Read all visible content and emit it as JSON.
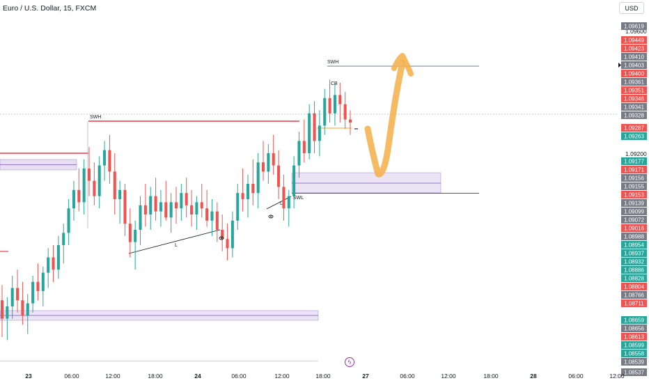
{
  "header": {
    "symbol": "Euro / U.S. Dollar, 15, FXCM",
    "currency": "USD"
  },
  "toolbar": {
    "lightning_icon": "lightning-icon"
  },
  "colors": {
    "up": "#26a69a",
    "down": "#ef5350",
    "grey_label": "#787b86",
    "drawing_red": "#f23645",
    "zone_fill": "#d1c4e9",
    "zone_line": "#7e57c2",
    "orange": "#f5b14c"
  },
  "chart_data": {
    "type": "candlestick",
    "title": "Euro / U.S. Dollar, 15, FXCM",
    "x_ticks": [
      "23",
      "06:00",
      "12:00",
      "18:00",
      "24",
      "06:00",
      "12:00",
      "18:00",
      "27",
      "06:00",
      "12:00",
      "18:00",
      "28",
      "06:00",
      "12:00"
    ],
    "y_ticks": [
      "1.09600",
      "1.09200"
    ],
    "y_axis_labels": [
      {
        "value": "1.09619",
        "kind": "grey"
      },
      {
        "value": "1.09449",
        "kind": "down"
      },
      {
        "value": "1.09423",
        "kind": "down"
      },
      {
        "value": "1.09410",
        "kind": "grey"
      },
      {
        "value": "1.09403",
        "kind": "grey"
      },
      {
        "value": "1.09400",
        "kind": "down"
      },
      {
        "value": "1.09361",
        "kind": "grey"
      },
      {
        "value": "1.09351",
        "kind": "down"
      },
      {
        "value": "1.09346",
        "kind": "down"
      },
      {
        "value": "1.09341",
        "kind": "grey"
      },
      {
        "value": "1.09328",
        "kind": "grey"
      },
      {
        "value": "1.09287",
        "kind": "down"
      },
      {
        "value": "1.09263",
        "kind": "up"
      },
      {
        "value": "1.09177",
        "kind": "up"
      },
      {
        "value": "1.09171",
        "kind": "down"
      },
      {
        "value": "1.09156",
        "kind": "grey"
      },
      {
        "value": "1.09155",
        "kind": "grey"
      },
      {
        "value": "1.09153",
        "kind": "down"
      },
      {
        "value": "1.09139",
        "kind": "grey"
      },
      {
        "value": "1.09099",
        "kind": "grey"
      },
      {
        "value": "1.09072",
        "kind": "grey"
      },
      {
        "value": "1.09016",
        "kind": "down"
      },
      {
        "value": "1.08988",
        "kind": "grey"
      },
      {
        "value": "1.08954",
        "kind": "up"
      },
      {
        "value": "1.08937",
        "kind": "up"
      },
      {
        "value": "1.08932",
        "kind": "up"
      },
      {
        "value": "1.08886",
        "kind": "up"
      },
      {
        "value": "1.08828",
        "kind": "up"
      },
      {
        "value": "1.08804",
        "kind": "down"
      },
      {
        "value": "1.08766",
        "kind": "grey"
      },
      {
        "value": "1.08711",
        "kind": "down"
      },
      {
        "value": "1.08659",
        "kind": "up"
      },
      {
        "value": "1.08656",
        "kind": "grey"
      },
      {
        "value": "1.08613",
        "kind": "down"
      },
      {
        "value": "1.08599",
        "kind": "up"
      },
      {
        "value": "1.08558",
        "kind": "up"
      },
      {
        "value": "1.08539",
        "kind": "grey"
      },
      {
        "value": "1.08537",
        "kind": "grey"
      }
    ],
    "annotations": [
      "SWH",
      "SWH",
      "SWL",
      "L",
      "L",
      "CB"
    ],
    "last_price": "1.09328",
    "series": [
      {
        "o": 1.0872,
        "h": 1.0877,
        "l": 1.086,
        "c": 1.0866
      },
      {
        "o": 1.0866,
        "h": 1.0873,
        "l": 1.0859,
        "c": 1.087
      },
      {
        "o": 1.087,
        "h": 1.088,
        "l": 1.0866,
        "c": 1.0876
      },
      {
        "o": 1.0876,
        "h": 1.0882,
        "l": 1.0868,
        "c": 1.0872
      },
      {
        "o": 1.0872,
        "h": 1.0878,
        "l": 1.0864,
        "c": 1.0867
      },
      {
        "o": 1.0867,
        "h": 1.0874,
        "l": 1.0861,
        "c": 1.0871
      },
      {
        "o": 1.0871,
        "h": 1.088,
        "l": 1.0868,
        "c": 1.0878
      },
      {
        "o": 1.0878,
        "h": 1.0884,
        "l": 1.0872,
        "c": 1.0875
      },
      {
        "o": 1.0875,
        "h": 1.0883,
        "l": 1.087,
        "c": 1.0881
      },
      {
        "o": 1.0881,
        "h": 1.0889,
        "l": 1.0876,
        "c": 1.0886
      },
      {
        "o": 1.0886,
        "h": 1.089,
        "l": 1.0878,
        "c": 1.0882
      },
      {
        "o": 1.0882,
        "h": 1.0893,
        "l": 1.0879,
        "c": 1.089
      },
      {
        "o": 1.089,
        "h": 1.0897,
        "l": 1.0884,
        "c": 1.0894
      },
      {
        "o": 1.0894,
        "h": 1.0905,
        "l": 1.089,
        "c": 1.0902
      },
      {
        "o": 1.0902,
        "h": 1.0911,
        "l": 1.0898,
        "c": 1.0908
      },
      {
        "o": 1.0908,
        "h": 1.0915,
        "l": 1.0901,
        "c": 1.0904
      },
      {
        "o": 1.0904,
        "h": 1.0918,
        "l": 1.09,
        "c": 1.0915
      },
      {
        "o": 1.0915,
        "h": 1.0922,
        "l": 1.0906,
        "c": 1.0911
      },
      {
        "o": 1.0911,
        "h": 1.0917,
        "l": 1.0903,
        "c": 1.0906
      },
      {
        "o": 1.0906,
        "h": 1.0919,
        "l": 1.0902,
        "c": 1.0916
      },
      {
        "o": 1.0916,
        "h": 1.0924,
        "l": 1.0911,
        "c": 1.0921
      },
      {
        "o": 1.0921,
        "h": 1.0926,
        "l": 1.091,
        "c": 1.0914
      },
      {
        "o": 1.0914,
        "h": 1.092,
        "l": 1.09,
        "c": 1.0905
      },
      {
        "o": 1.0905,
        "h": 1.0911,
        "l": 1.0897,
        "c": 1.0908
      },
      {
        "o": 1.0908,
        "h": 1.091,
        "l": 1.0893,
        "c": 1.0897
      },
      {
        "o": 1.0897,
        "h": 1.0902,
        "l": 1.0886,
        "c": 1.0891
      },
      {
        "o": 1.0891,
        "h": 1.0898,
        "l": 1.0882,
        "c": 1.0895
      },
      {
        "o": 1.0895,
        "h": 1.0906,
        "l": 1.089,
        "c": 1.0903
      },
      {
        "o": 1.0903,
        "h": 1.091,
        "l": 1.0896,
        "c": 1.09
      },
      {
        "o": 1.09,
        "h": 1.0909,
        "l": 1.0895,
        "c": 1.0906
      },
      {
        "o": 1.0906,
        "h": 1.0912,
        "l": 1.0898,
        "c": 1.0901
      },
      {
        "o": 1.0901,
        "h": 1.0908,
        "l": 1.0896,
        "c": 1.0904
      },
      {
        "o": 1.0904,
        "h": 1.0911,
        "l": 1.0898,
        "c": 1.0899
      },
      {
        "o": 1.0899,
        "h": 1.0907,
        "l": 1.0894,
        "c": 1.0904
      },
      {
        "o": 1.0904,
        "h": 1.0909,
        "l": 1.0897,
        "c": 1.0902
      },
      {
        "o": 1.0902,
        "h": 1.091,
        "l": 1.0898,
        "c": 1.0907
      },
      {
        "o": 1.0907,
        "h": 1.0912,
        "l": 1.0899,
        "c": 1.0903
      },
      {
        "o": 1.0903,
        "h": 1.0908,
        "l": 1.0896,
        "c": 1.09
      },
      {
        "o": 1.09,
        "h": 1.0906,
        "l": 1.0895,
        "c": 1.0904
      },
      {
        "o": 1.0904,
        "h": 1.091,
        "l": 1.0899,
        "c": 1.0902
      },
      {
        "o": 1.0902,
        "h": 1.0908,
        "l": 1.0896,
        "c": 1.0898
      },
      {
        "o": 1.0898,
        "h": 1.0905,
        "l": 1.0893,
        "c": 1.0901
      },
      {
        "o": 1.0901,
        "h": 1.0904,
        "l": 1.0891,
        "c": 1.0895
      },
      {
        "o": 1.0895,
        "h": 1.09,
        "l": 1.0888,
        "c": 1.0892
      },
      {
        "o": 1.0892,
        "h": 1.0897,
        "l": 1.0885,
        "c": 1.0889
      },
      {
        "o": 1.0889,
        "h": 1.0901,
        "l": 1.0886,
        "c": 1.0898
      },
      {
        "o": 1.0898,
        "h": 1.091,
        "l": 1.0895,
        "c": 1.0907
      },
      {
        "o": 1.0907,
        "h": 1.0915,
        "l": 1.0901,
        "c": 1.0905
      },
      {
        "o": 1.0905,
        "h": 1.0913,
        "l": 1.0899,
        "c": 1.091
      },
      {
        "o": 1.091,
        "h": 1.0918,
        "l": 1.0903,
        "c": 1.0907
      },
      {
        "o": 1.0907,
        "h": 1.092,
        "l": 1.0902,
        "c": 1.0917
      },
      {
        "o": 1.0917,
        "h": 1.0924,
        "l": 1.0911,
        "c": 1.0914
      },
      {
        "o": 1.0914,
        "h": 1.0923,
        "l": 1.091,
        "c": 1.092
      },
      {
        "o": 1.092,
        "h": 1.0926,
        "l": 1.0913,
        "c": 1.0916
      },
      {
        "o": 1.0916,
        "h": 1.0921,
        "l": 1.0905,
        "c": 1.0909
      },
      {
        "o": 1.0909,
        "h": 1.0913,
        "l": 1.0898,
        "c": 1.0902
      },
      {
        "o": 1.0902,
        "h": 1.0908,
        "l": 1.0896,
        "c": 1.0906
      },
      {
        "o": 1.0906,
        "h": 1.0919,
        "l": 1.0902,
        "c": 1.0916
      },
      {
        "o": 1.0916,
        "h": 1.0927,
        "l": 1.0912,
        "c": 1.0924
      },
      {
        "o": 1.0924,
        "h": 1.0931,
        "l": 1.0917,
        "c": 1.092
      },
      {
        "o": 1.092,
        "h": 1.0936,
        "l": 1.0918,
        "c": 1.0933
      },
      {
        "o": 1.0933,
        "h": 1.0937,
        "l": 1.092,
        "c": 1.0924
      },
      {
        "o": 1.0924,
        "h": 1.0934,
        "l": 1.0919,
        "c": 1.0929
      },
      {
        "o": 1.0929,
        "h": 1.0941,
        "l": 1.0926,
        "c": 1.0938
      },
      {
        "o": 1.0938,
        "h": 1.0944,
        "l": 1.093,
        "c": 1.0933
      },
      {
        "o": 1.0933,
        "h": 1.0943,
        "l": 1.0929,
        "c": 1.0939
      },
      {
        "o": 1.0939,
        "h": 1.0943,
        "l": 1.093,
        "c": 1.0936
      },
      {
        "o": 1.0936,
        "h": 1.094,
        "l": 1.0928,
        "c": 1.0931
      },
      {
        "o": 1.0931,
        "h": 1.0934,
        "l": 1.0926,
        "c": 1.093
      }
    ]
  }
}
